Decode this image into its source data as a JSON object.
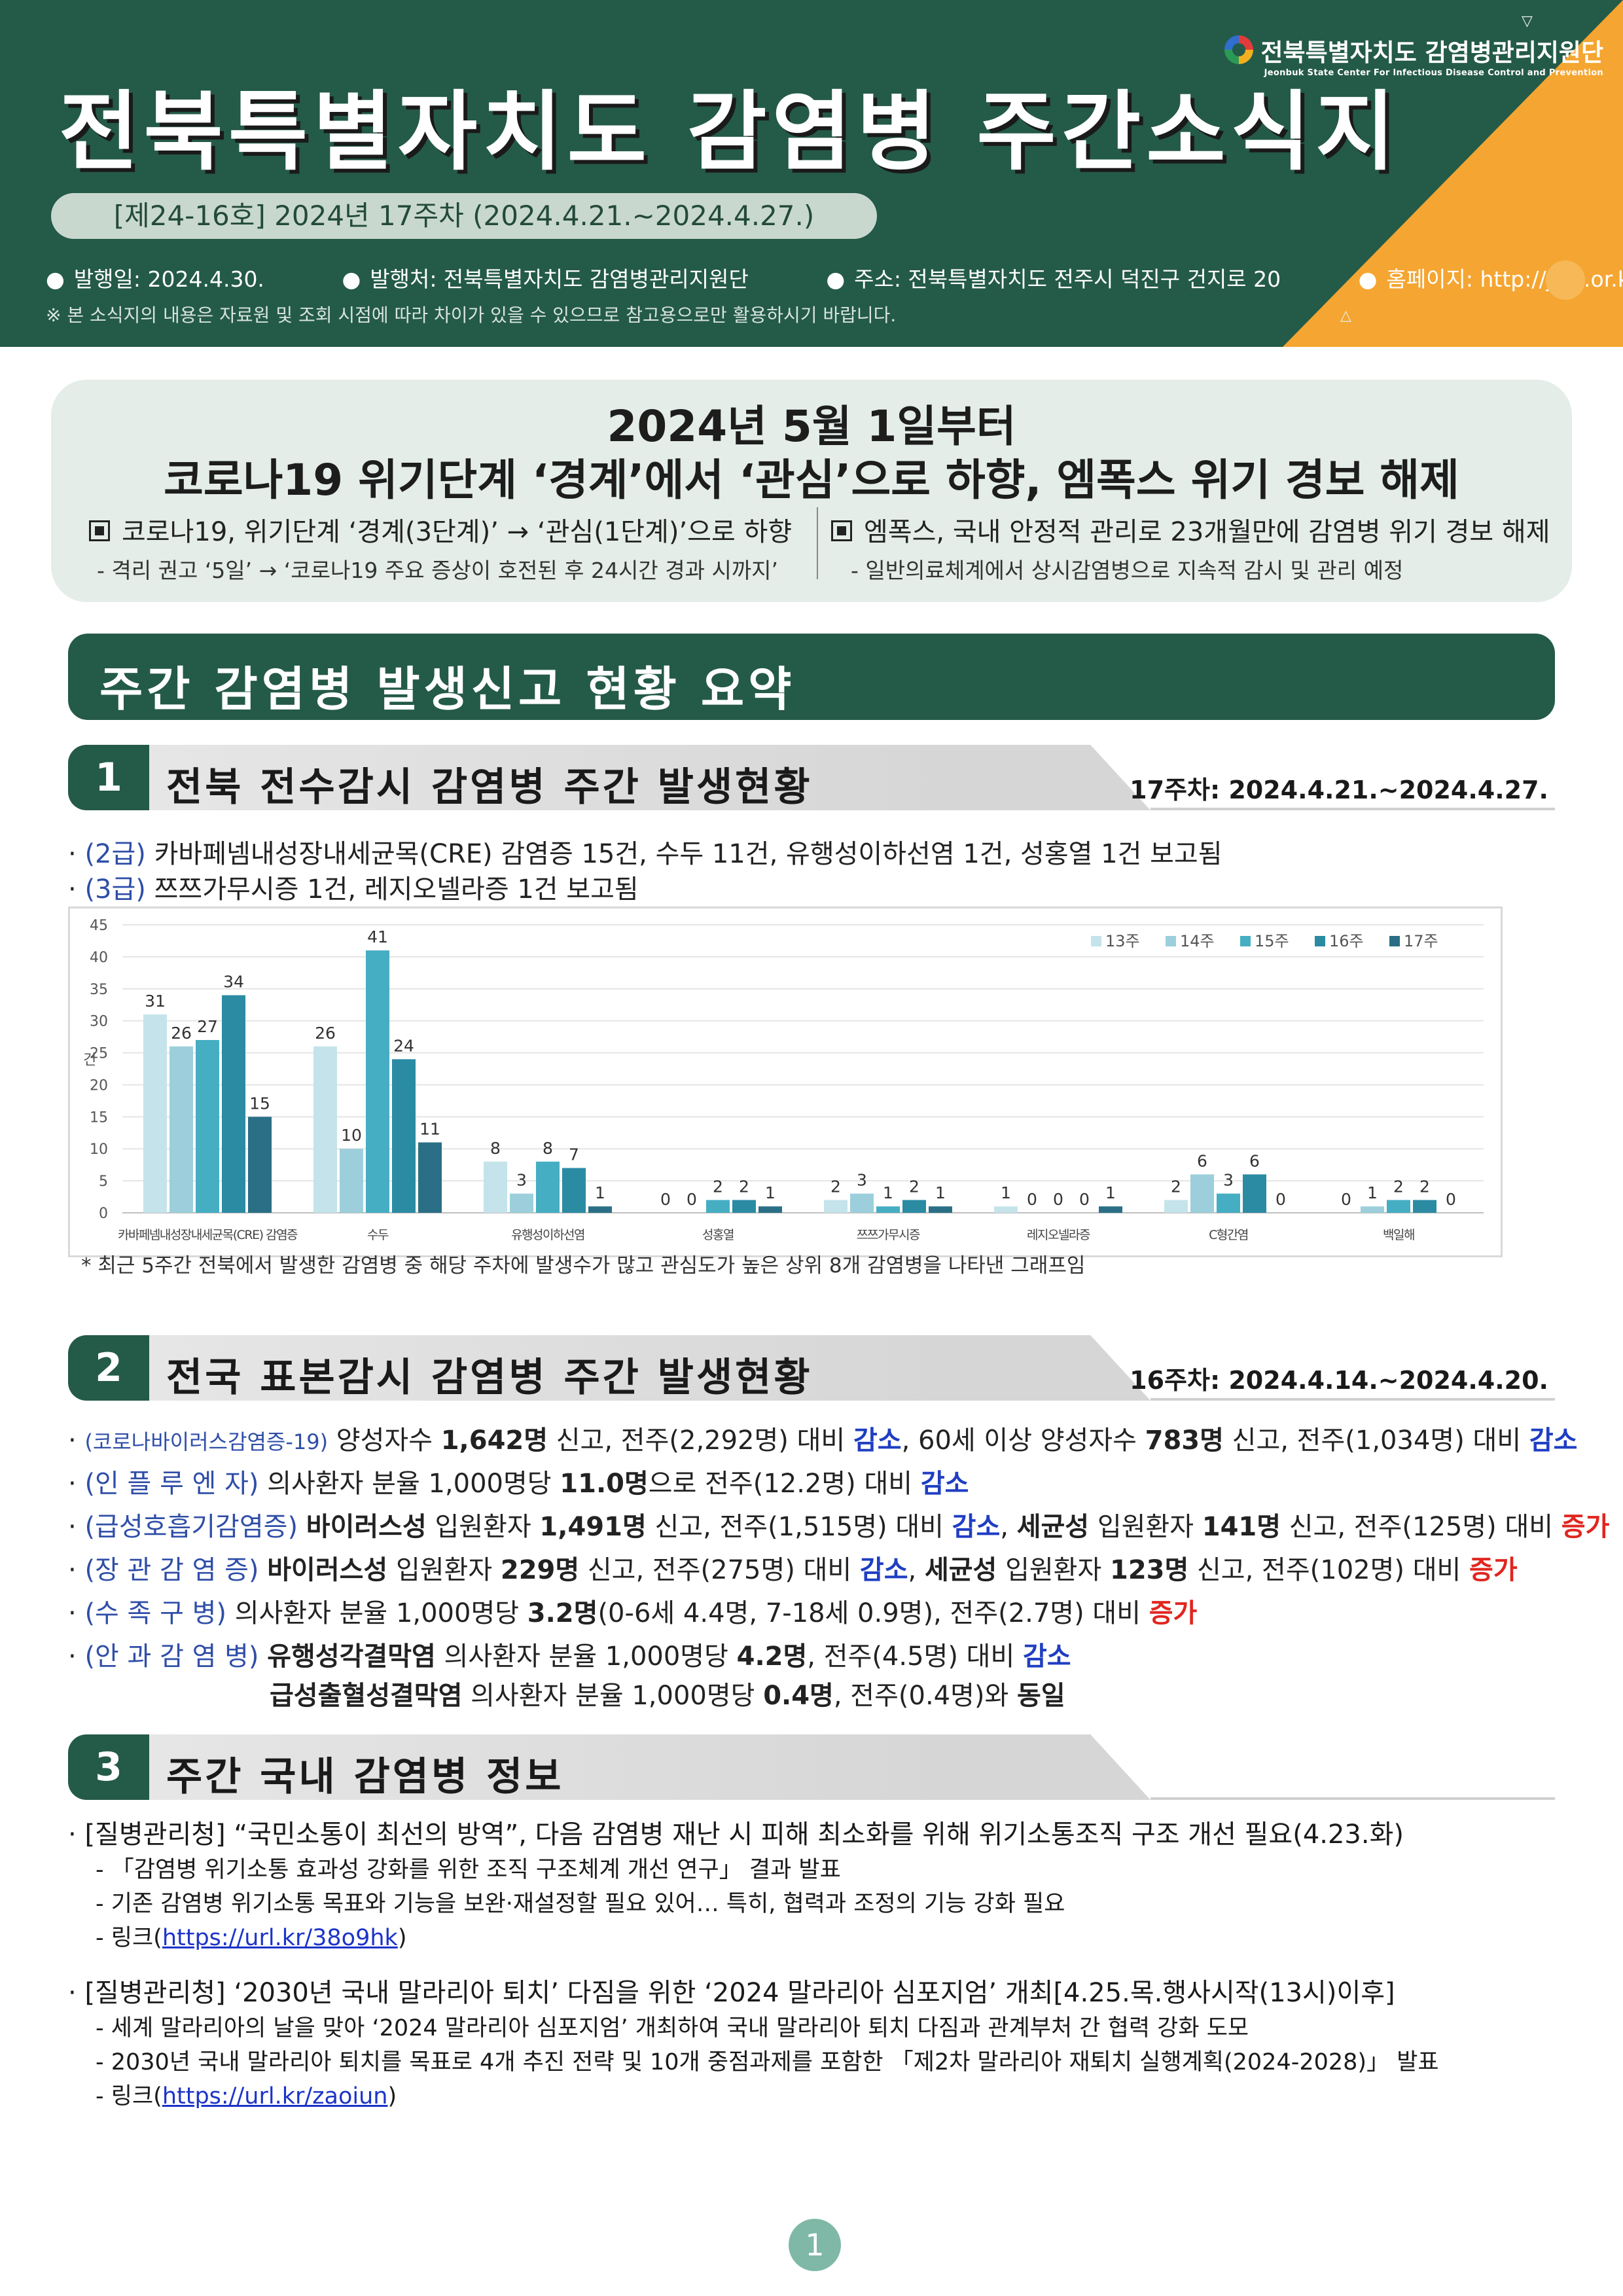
{
  "header": {
    "title": "전북특별자치도  감염병  주간소식지",
    "issue": "[제24-16호] 2024년 17주차 (2024.4.21.~2024.4.27.)",
    "meta": [
      "발행일: 2024.4.30.",
      "발행처: 전북특별자치도 감염병관리지원단",
      "주소: 전북특별자치도 전주시 덕진구 건지로 20",
      "홈페이지: http://jcid.or.kr/"
    ],
    "note": "※ 본 소식지의 내용은 자료원 및 조회 시점에 따라 차이가 있을 수 있으므로 참고용으로만 활용하시기 바랍니다.",
    "org_name_ko": "전북특별자치도 감염병관리지원단",
    "org_name_en": "Jeonbuk State Center For Infectious Disease Control and Prevention"
  },
  "notice": {
    "headline1": "2024년 5월 1일부터",
    "headline2": "코로나19 위기단계 ‘경계’에서 ‘관심’으로 하향, 엠폭스 위기 경보 해제",
    "left_main": "코로나19, 위기단계 ‘경계(3단계)’ → ‘관심(1단계)’으로 하향",
    "left_sub": "- 격리 권고 ‘5일’ → ‘코로나19 주요 증상이 호전된 후 24시간 경과 시까지’",
    "right_main": "엠폭스, 국내 안정적 관리로 23개월만에 감염병 위기 경보 해제",
    "right_sub": "- 일반의료체계에서 상시감염병으로 지속적 감시 및 관리 예정"
  },
  "summary_title": "주간 감염병 발생신고 현황 요약",
  "section1": {
    "num": "1",
    "title": "전북 전수감시 감염병 주간 발생현황",
    "period": "17주차: 2024.4.21.~2024.4.27.",
    "b1_tag": "(2급)",
    "b1_text": " 카바페넴내성장내세균목(CRE) 감염증 15건, 수두 11건, 유행성이하선염 1건, 성홍열 1건 보고됨",
    "b2_tag": "(3급)",
    "b2_text": " 쯔쯔가무시증 1건, 레지오넬라증 1건 보고됨",
    "footnote": "* 최근 5주간 전북에서 발생한 감염병 중 해당 주차에 발생수가 많고 관심도가 높은 상위 8개 감염병을 나타낸 그래프임"
  },
  "chart_data": {
    "type": "bar",
    "ylabel": "건",
    "ylim": [
      0,
      45
    ],
    "yticks": [
      0,
      5,
      10,
      15,
      20,
      25,
      30,
      35,
      40,
      45
    ],
    "grid": true,
    "legend_position": "top-right",
    "categories": [
      "카바페넴내성장내세균목(CRE) 감염증",
      "수두",
      "유행성이하선염",
      "성홍열",
      "쯔쯔가무시증",
      "레지오넬라증",
      "C형간염",
      "백일해"
    ],
    "series": [
      {
        "name": "13주",
        "color": "#c5e3ea",
        "values": [
          31,
          26,
          8,
          0,
          2,
          1,
          2,
          0
        ]
      },
      {
        "name": "14주",
        "color": "#9ccfdb",
        "values": [
          26,
          10,
          3,
          0,
          3,
          0,
          6,
          1
        ]
      },
      {
        "name": "15주",
        "color": "#46aec3",
        "values": [
          27,
          41,
          8,
          2,
          1,
          0,
          3,
          2
        ]
      },
      {
        "name": "16주",
        "color": "#2b8ba3",
        "values": [
          34,
          24,
          7,
          2,
          2,
          0,
          6,
          2
        ]
      },
      {
        "name": "17주",
        "color": "#2a6f86",
        "values": [
          15,
          11,
          1,
          1,
          1,
          1,
          0,
          0
        ]
      }
    ]
  },
  "section2": {
    "num": "2",
    "title": "전국 표본감시 감염병 주간 발생현황",
    "period": "16주차: 2024.4.14.~2024.4.20.",
    "items": [
      {
        "tag": "(코로나바이러스감염증-19)",
        "parts": [
          "양성자수 ",
          "1,642명",
          " 신고, 전주(2,292명) 대비 ",
          "감소",
          ", 60세 이상 양성자수 ",
          "783명",
          " 신고, 전주(1,034명) 대비 ",
          "감소"
        ]
      },
      {
        "tag": "(인 플 루 엔 자)",
        "parts": [
          "의사환자 분율 1,000명당 ",
          "11.0명",
          "으로 전주(12.2명) 대비 ",
          "감소"
        ]
      },
      {
        "tag": "(급성호흡기감염증)",
        "parts": [
          "바이러스성",
          " 입원환자 ",
          "1,491명",
          " 신고, 전주(1,515명) 대비 ",
          "감소",
          ", ",
          "세균성",
          " 입원환자 ",
          "141명",
          " 신고, 전주(125명) 대비 ",
          "증가"
        ]
      },
      {
        "tag": "(장 관 감 염 증)",
        "parts": [
          "바이러스성",
          " 입원환자 ",
          "229명",
          " 신고, 전주(275명) 대비 ",
          "감소",
          ", ",
          "세균성",
          " 입원환자 ",
          "123명",
          " 신고, 전주(102명) 대비 ",
          "증가"
        ]
      },
      {
        "tag": "(수   족   구   병)",
        "parts": [
          "의사환자 분율 1,000명당 ",
          "3.2명",
          "(0-6세 4.4명, 7-18세 0.9명), 전주(2.7명) 대비 ",
          "증가"
        ]
      },
      {
        "tag": "(안 과 감 염 병)",
        "parts": [
          "유행성각결막염",
          " 의사환자 분율 1,000명당 ",
          "4.2명",
          ", 전주(4.5명) 대비 ",
          "감소"
        ]
      },
      {
        "tag": "",
        "parts": [
          "급성출혈성결막염",
          " 의사환자 분율 1,000명당 ",
          "0.4명",
          ", 전주(0.4명)와 ",
          "동일"
        ]
      }
    ]
  },
  "section3": {
    "num": "3",
    "title": "주간 국내 감염병 정보",
    "news": [
      {
        "headline": "[질병관리청] “국민소통이 최선의 방역”, 다음 감염병 재난 시 피해 최소화를 위해 위기소통조직 구조 개선 필요(4.23.화)",
        "lines": [
          "- 「감염병 위기소통 효과성 강화를 위한 조직 구조체계 개선 연구」 결과 발표",
          "- 기존 감염병 위기소통 목표와 기능을 보완·재설정할 필요 있어… 특히, 협력과 조정의 기능 강화 필요"
        ],
        "link_prefix": "- 링크(",
        "link": "https://url.kr/38o9hk",
        "link_suffix": ")"
      },
      {
        "headline": "[질병관리청] ‘2030년 국내 말라리아 퇴치’ 다짐을 위한 ‘2024 말라리아 심포지엄’ 개최[4.25.목.행사시작(13시)이후]",
        "lines": [
          "- 세계 말라리아의 날을 맞아 ‘2024 말라리아 심포지엄’ 개최하여 국내 말라리아 퇴치 다짐과 관계부처 간 협력 강화 도모",
          "- 2030년 국내 말라리아 퇴치를 목표로 4개 추진 전략 및 10개 중점과제를 포함한 「제2차 말라리아 재퇴치 실행계획(2024-2028)」 발표"
        ],
        "link_prefix": "- 링크(",
        "link": "https://url.kr/zaoiun",
        "link_suffix": ")"
      }
    ]
  },
  "page_number": "1"
}
